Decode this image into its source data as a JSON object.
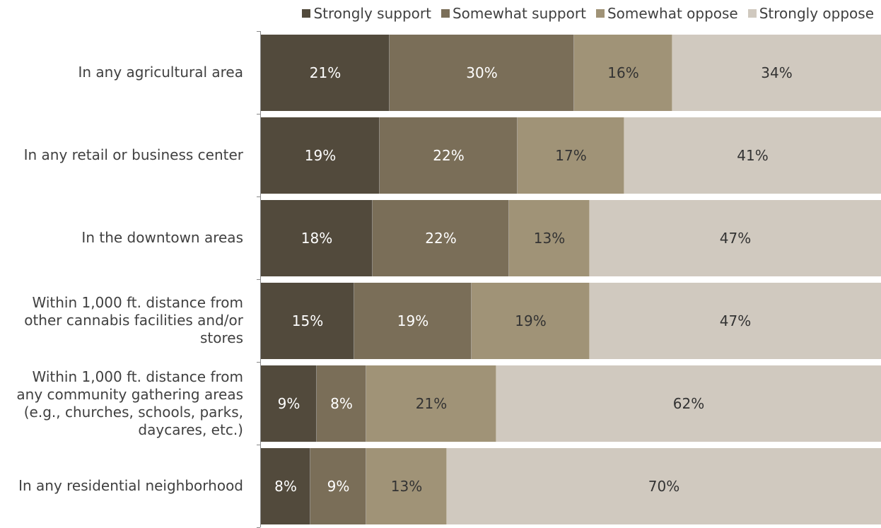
{
  "chart_data": {
    "type": "bar",
    "orientation": "horizontal",
    "stacked": true,
    "normalized": true,
    "legend_position": "top-right",
    "grid": false,
    "categories": [
      "In any agricultural area",
      "In any retail or business center",
      "In the downtown areas",
      "Within 1,000 ft. distance from other cannabis facilities and/or stores",
      "Within 1,000 ft. distance from any community gathering areas (e.g., churches, schools, parks, daycares, etc.)",
      "In any residential neighborhood"
    ],
    "category_lines": [
      [
        "In any agricultural area"
      ],
      [
        "In any retail or business center"
      ],
      [
        "In the downtown areas"
      ],
      [
        "Within 1,000 ft. distance from",
        "other cannabis facilities and/or",
        "stores"
      ],
      [
        "Within 1,000 ft. distance from",
        "any community gathering areas",
        "(e.g., churches, schools, parks,",
        "daycares, etc.)"
      ],
      [
        "In any residential neighborhood"
      ]
    ],
    "series": [
      {
        "name": "Strongly support",
        "color": "#524a3c",
        "label_color": "#ffffff",
        "values": [
          21,
          19,
          18,
          15,
          9,
          8
        ]
      },
      {
        "name": "Somewhat support",
        "color": "#7a6e58",
        "label_color": "#ffffff",
        "values": [
          30,
          22,
          22,
          19,
          8,
          9
        ]
      },
      {
        "name": "Somewhat oppose",
        "color": "#a09377",
        "label_color": "#333333",
        "values": [
          16,
          17,
          13,
          19,
          21,
          13
        ]
      },
      {
        "name": "Strongly oppose",
        "color": "#d0c9bf",
        "label_color": "#333333",
        "values": [
          34,
          41,
          47,
          47,
          62,
          70
        ]
      }
    ],
    "value_suffix": "%"
  }
}
